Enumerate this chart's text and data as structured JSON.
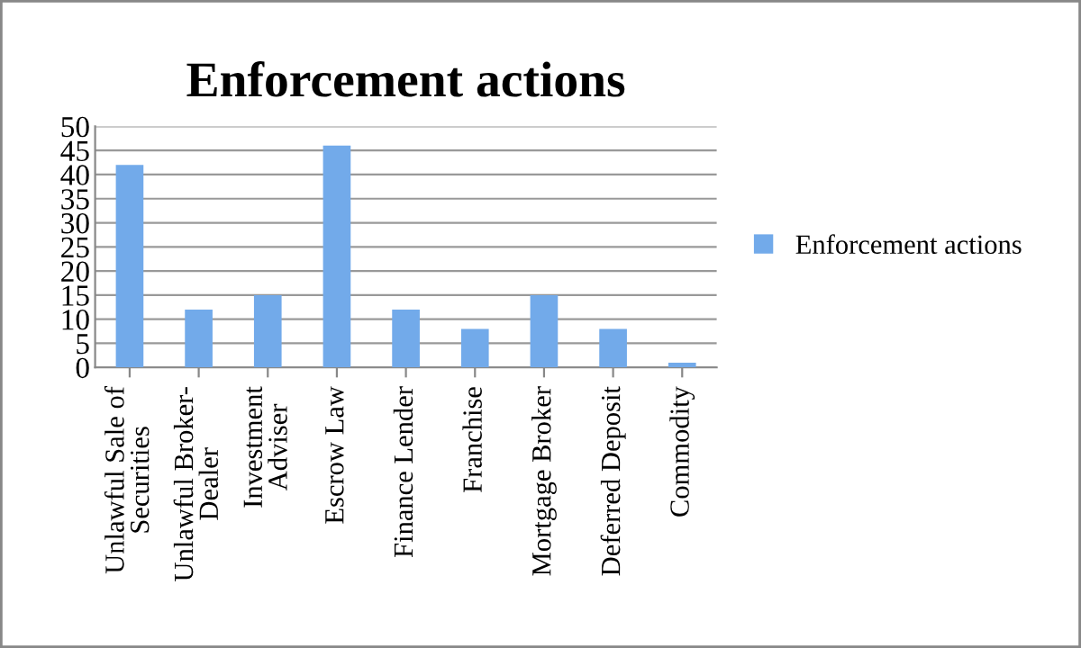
{
  "chart_data": {
    "type": "bar",
    "title": "Enforcement actions",
    "categories": [
      "Unlawful Sale of\nSecurities",
      "Unlawful Broker-\nDealer",
      "Investment\nAdviser",
      "Escrow Law",
      "Finance Lender",
      "Franchise",
      "Mortgage Broker",
      "Deferred Deposit",
      "Commodity"
    ],
    "series": [
      {
        "name": "Enforcement actions",
        "color": "#72aaea",
        "values": [
          42,
          12,
          15,
          46,
          12,
          8,
          15,
          8,
          1
        ]
      }
    ],
    "ylim": [
      0,
      50
    ],
    "yticks": [
      0,
      5,
      10,
      15,
      20,
      25,
      30,
      35,
      40,
      45,
      50
    ],
    "grid": "y",
    "legend": "right"
  }
}
